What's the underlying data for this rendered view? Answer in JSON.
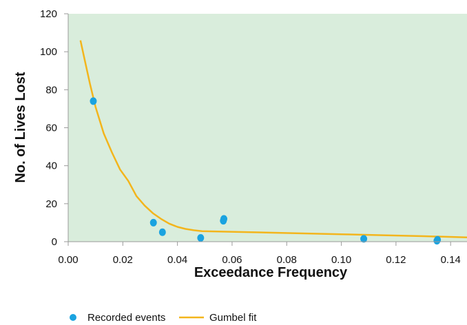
{
  "chart_data": {
    "type": "scatter",
    "title": "",
    "xlabel": "Exceedance Frequency",
    "ylabel": "No. of Lives Lost",
    "xlim": [
      0.0,
      0.146
    ],
    "ylim": [
      0,
      120
    ],
    "x_ticks": [
      "0.00",
      "0.02",
      "0.04",
      "0.06",
      "0.08",
      "0.10",
      "0.12",
      "0.14"
    ],
    "x_tick_values": [
      0.0,
      0.02,
      0.04,
      0.06,
      0.08,
      0.1,
      0.12,
      0.14
    ],
    "y_ticks": [
      "0",
      "20",
      "40",
      "60",
      "80",
      "100",
      "120"
    ],
    "y_tick_values": [
      0,
      20,
      40,
      60,
      80,
      100,
      120
    ],
    "grid": false,
    "background_color": "#d9eddc",
    "legend_position": "bottom-left",
    "series": [
      {
        "name": "Recorded events",
        "kind": "scatter",
        "color": "#1aa3e0",
        "x": [
          0.0092,
          0.0312,
          0.0345,
          0.0485,
          0.0568,
          0.057,
          0.1082,
          0.135,
          0.1352
        ],
        "y": [
          74,
          10,
          5,
          2,
          11,
          12,
          1.5,
          0.5,
          1
        ]
      },
      {
        "name": "Gumbel fit",
        "kind": "line",
        "color": "#f3b51c",
        "x": [
          0.0045,
          0.006,
          0.008,
          0.01,
          0.013,
          0.016,
          0.019,
          0.022,
          0.025,
          0.028,
          0.031,
          0.034,
          0.037,
          0.04,
          0.043,
          0.046,
          0.049,
          0.07,
          0.1,
          0.13,
          0.146
        ],
        "y": [
          106,
          96,
          83,
          71,
          57,
          47,
          38,
          32,
          24,
          19,
          15,
          12,
          9.5,
          7.8,
          6.7,
          6.0,
          5.5,
          4.9,
          3.9,
          2.9,
          2.3
        ]
      }
    ]
  }
}
